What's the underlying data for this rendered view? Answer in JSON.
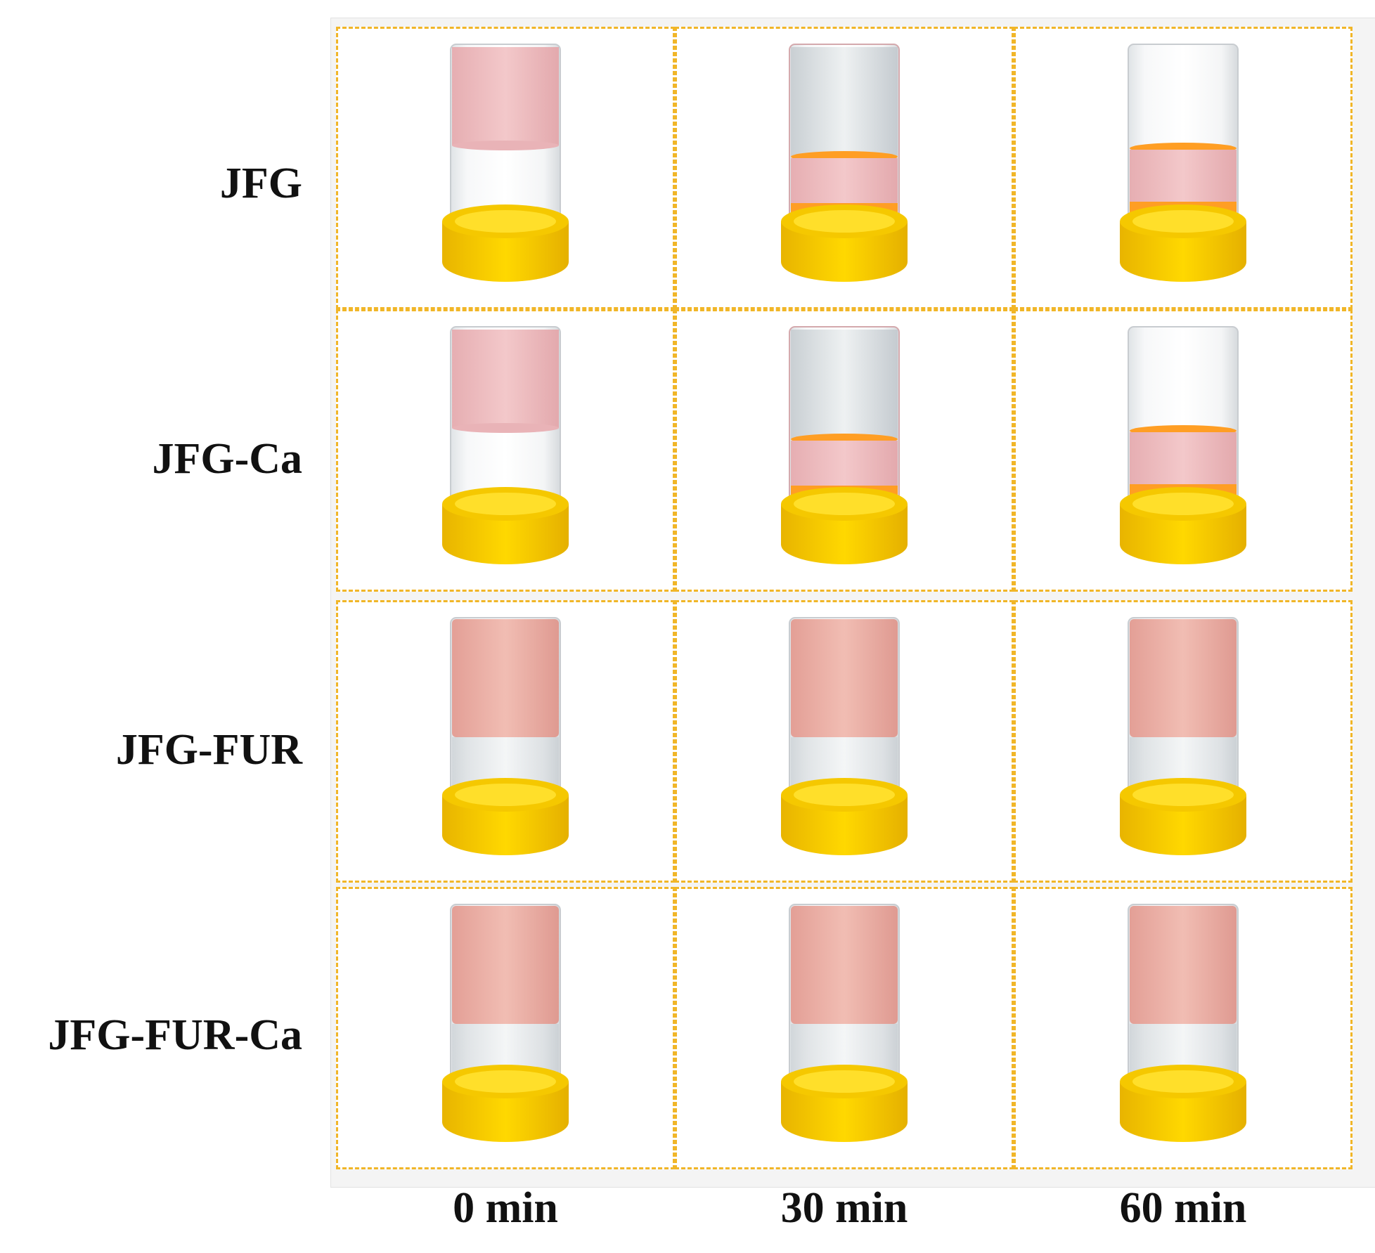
{
  "rows": [
    {
      "label": "JFG"
    },
    {
      "label": "JFG-Ca"
    },
    {
      "label": "JFG-FUR"
    },
    {
      "label": "JFG-FUR-Ca"
    }
  ],
  "columns": [
    {
      "label": "0 min"
    },
    {
      "label": "30 min"
    },
    {
      "label": "60 min"
    }
  ],
  "colors": {
    "border": "#f1b628",
    "cap": "#f7d000",
    "cap_shade": "#e7b800",
    "pink_liquid": "#f2c3c6",
    "orange_liquid": "#ff9d1e",
    "opaque_pink": "#e8aca3"
  }
}
